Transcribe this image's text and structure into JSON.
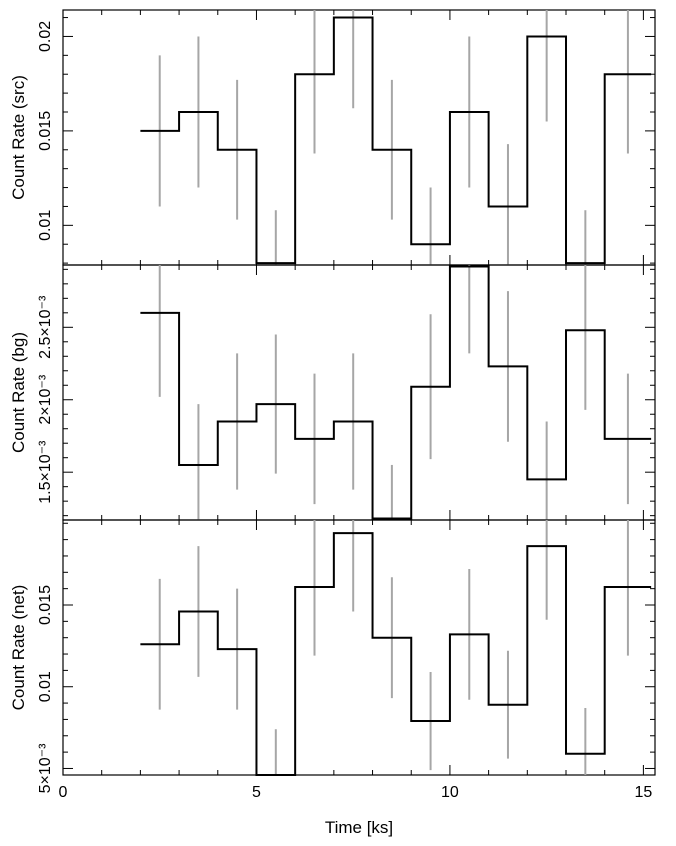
{
  "chart_data": [
    {
      "type": "line",
      "style": "step",
      "ylabel": "Count Rate (src)",
      "xlabel": "",
      "xlim": [
        0,
        15.3
      ],
      "ylim": [
        0.0079,
        0.0214
      ],
      "yticks": [
        {
          "value": 0.01,
          "label": "0.01"
        },
        {
          "value": 0.015,
          "label": "0.015"
        },
        {
          "value": 0.02,
          "label": "0.02"
        }
      ],
      "series": [
        {
          "bins": [
            2,
            3,
            4,
            5,
            6,
            7,
            8,
            9,
            10,
            11,
            12,
            13,
            14,
            15.2
          ],
          "values": [
            0.015,
            0.016,
            0.014,
            0.008,
            0.018,
            0.021,
            0.014,
            0.009,
            0.016,
            0.011,
            0.02,
            0.008,
            0.018
          ],
          "errors": [
            0.004,
            0.004,
            0.0037,
            0.0028,
            0.0042,
            0.0048,
            0.0037,
            0.003,
            0.004,
            0.0033,
            0.0045,
            0.0028,
            0.0042
          ]
        }
      ]
    },
    {
      "type": "line",
      "style": "step",
      "ylabel": "Count Rate (bg)",
      "xlabel": "",
      "xlim": [
        0,
        15.3
      ],
      "ylim": [
        0.00117,
        0.00293
      ],
      "yticks": [
        {
          "value": 0.0015,
          "label": "1.5×10⁻³"
        },
        {
          "value": 0.002,
          "label": "2×10⁻³"
        },
        {
          "value": 0.0025,
          "label": "2.5×10⁻³"
        }
      ],
      "series": [
        {
          "bins": [
            2,
            3,
            4,
            5,
            6,
            7,
            8,
            9,
            10,
            11,
            12,
            13,
            14,
            15.2
          ],
          "values": [
            0.0026,
            0.00155,
            0.00185,
            0.00197,
            0.00173,
            0.00185,
            0.00118,
            0.00209,
            0.00292,
            0.00223,
            0.00145,
            0.00248,
            0.00173
          ],
          "errors": [
            0.00058,
            0.00042,
            0.00047,
            0.00048,
            0.00045,
            0.00047,
            0.00037,
            0.0005,
            0.0006,
            0.00052,
            0.0004,
            0.00055,
            0.00045
          ]
        }
      ]
    },
    {
      "type": "line",
      "style": "step",
      "ylabel": "Count Rate (net)",
      "xlabel": "Time [ks]",
      "xlim": [
        0,
        15.3
      ],
      "xticks": [
        {
          "value": 0,
          "label": "0"
        },
        {
          "value": 5,
          "label": "5"
        },
        {
          "value": 10,
          "label": "10"
        },
        {
          "value": 15,
          "label": "15"
        }
      ],
      "ylim": [
        0.0046,
        0.0202
      ],
      "yticks": [
        {
          "value": 0.005,
          "label": "5×10⁻³"
        },
        {
          "value": 0.01,
          "label": "0.01"
        },
        {
          "value": 0.015,
          "label": "0.015"
        }
      ],
      "series": [
        {
          "bins": [
            2,
            3,
            4,
            5,
            6,
            7,
            8,
            9,
            10,
            11,
            12,
            13,
            14,
            15.2
          ],
          "values": [
            0.0126,
            0.0146,
            0.0123,
            0.0046,
            0.0161,
            0.0194,
            0.013,
            0.0079,
            0.0132,
            0.0089,
            0.0186,
            0.0059,
            0.0161
          ],
          "errors": [
            0.004,
            0.004,
            0.0037,
            0.0028,
            0.0042,
            0.0048,
            0.0037,
            0.003,
            0.004,
            0.0033,
            0.0045,
            0.0028,
            0.0042
          ]
        }
      ]
    }
  ]
}
